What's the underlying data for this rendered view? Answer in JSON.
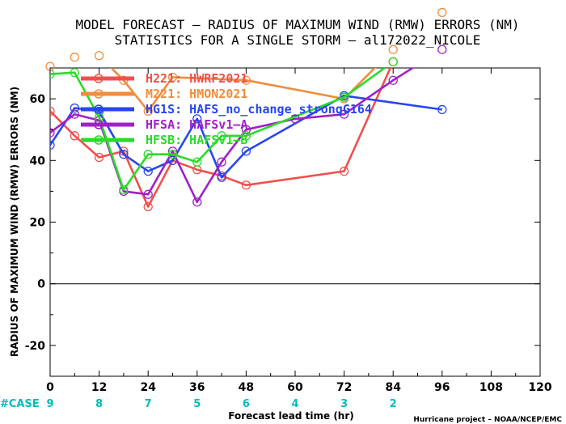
{
  "chart_data": {
    "type": "line",
    "title": "MODEL FORECAST – RADIUS OF MAXIMUM WIND (RMW) ERRORS (NM)",
    "subtitle": "STATISTICS FOR A SINGLE STORM – al172022_NICOLE",
    "xlabel": "Forecast lead time (hr)",
    "ylabel": "RADIUS OF MAXIMUM WIND (RMW) ERRORS (NM)",
    "xlim": [
      0,
      120
    ],
    "ylim": [
      -30,
      70
    ],
    "x_ticks": [
      "0",
      "12",
      "24",
      "36",
      "48",
      "60",
      "72",
      "84",
      "96",
      "108",
      "120"
    ],
    "y_ticks": [
      "-20",
      "0",
      "20",
      "40",
      "60"
    ],
    "zero_line": 0,
    "case_label": "#CASE",
    "case_color": "#00bcbc",
    "cases": [
      {
        "x": 0,
        "n": "9"
      },
      {
        "x": 12,
        "n": "8"
      },
      {
        "x": 24,
        "n": "7"
      },
      {
        "x": 36,
        "n": "5"
      },
      {
        "x": 48,
        "n": "6"
      },
      {
        "x": 60,
        "n": "4"
      },
      {
        "x": 72,
        "n": "3"
      },
      {
        "x": 84,
        "n": "2"
      }
    ],
    "credit": "Hurricane project – NOAA/NCEP/EMC",
    "series": [
      {
        "name": "H221:  HWRF2021",
        "color": "#f0504c",
        "points": [
          [
            0,
            56
          ],
          [
            6,
            48
          ],
          [
            12,
            41
          ],
          [
            18,
            43
          ],
          [
            24,
            25
          ],
          [
            30,
            40
          ],
          [
            36,
            37
          ],
          [
            42,
            35
          ],
          [
            48,
            32
          ],
          [
            72,
            36.5
          ],
          [
            84,
            72
          ]
        ]
      },
      {
        "name": "M221:  HMON2021",
        "color": "#f08c3c",
        "points": [
          [
            0,
            70.5
          ],
          [
            6,
            73.5
          ],
          [
            12,
            74
          ],
          [
            18,
            66
          ],
          [
            24,
            56
          ],
          [
            30,
            67
          ],
          [
            48,
            66
          ],
          [
            72,
            60
          ],
          [
            84,
            76
          ],
          [
            96,
            88
          ]
        ]
      },
      {
        "name": "HG1S:  HAFS_no_change_strongG164",
        "color": "#2846f0",
        "points": [
          [
            0,
            45
          ],
          [
            6,
            57
          ],
          [
            12,
            56
          ],
          [
            18,
            42
          ],
          [
            24,
            36.5
          ],
          [
            30,
            40
          ],
          [
            36,
            53.5
          ],
          [
            42,
            34.5
          ],
          [
            48,
            43
          ],
          [
            72,
            61
          ],
          [
            96,
            56.5
          ]
        ]
      },
      {
        "name": "HFSA:  HAFSv1–A",
        "color": "#a020c8",
        "points": [
          [
            0,
            49
          ],
          [
            6,
            55
          ],
          [
            12,
            53
          ],
          [
            18,
            30
          ],
          [
            24,
            29
          ],
          [
            30,
            43
          ],
          [
            36,
            26.5
          ],
          [
            42,
            39.5
          ],
          [
            48,
            50
          ],
          [
            60,
            53.5
          ],
          [
            72,
            55
          ],
          [
            84,
            66
          ],
          [
            96,
            76
          ]
        ]
      },
      {
        "name": "HFSB:  HAFSv1–B",
        "color": "#28dc28",
        "points": [
          [
            0,
            68
          ],
          [
            6,
            68.5
          ],
          [
            12,
            54
          ],
          [
            18,
            30.5
          ],
          [
            24,
            42
          ],
          [
            30,
            42
          ],
          [
            36,
            39.5
          ],
          [
            42,
            48
          ],
          [
            48,
            48
          ],
          [
            72,
            60.5
          ],
          [
            84,
            72
          ]
        ]
      }
    ]
  }
}
